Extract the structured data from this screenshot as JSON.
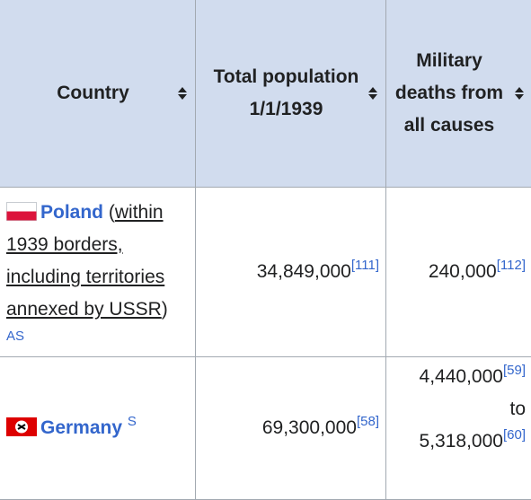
{
  "table": {
    "headers": [
      "Country",
      "Total population 1/1/1939",
      "Military deaths from all causes"
    ],
    "rows": [
      {
        "country": "Poland",
        "note_open": "(",
        "note": "within 1939 borders, including territories annexed by USSR",
        "note_close": ")",
        "tag": "AS",
        "population": "34,849,000",
        "population_ref": "[111]",
        "deaths": [
          {
            "value": "240,000",
            "ref": "[112]"
          }
        ]
      },
      {
        "country": "Germany",
        "tag": "S",
        "population": "69,300,000",
        "population_ref": "[58]",
        "deaths": [
          {
            "value": "4,440,000",
            "ref": "[59]"
          },
          {
            "value": "5,318,000",
            "ref": "[60]"
          }
        ],
        "deaths_joiner": "to"
      }
    ]
  }
}
